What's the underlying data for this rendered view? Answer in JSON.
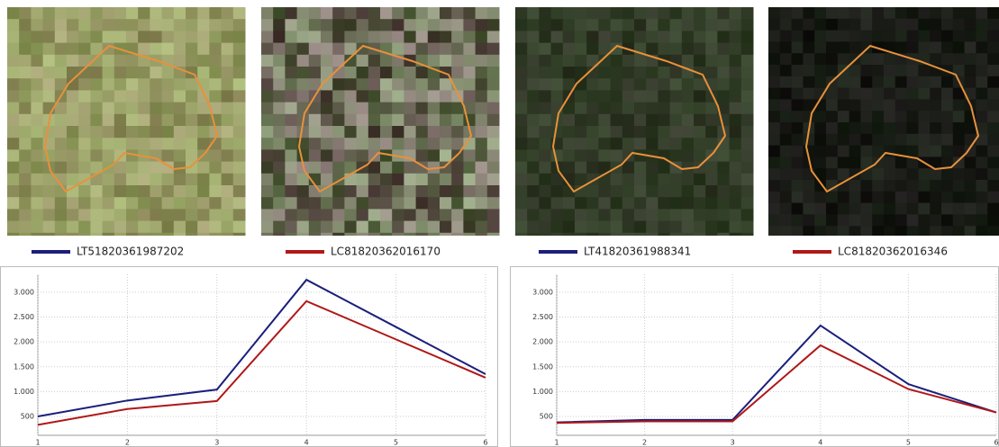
{
  "chart_data": [
    {
      "type": "line",
      "x": [
        1,
        2,
        3,
        4,
        5,
        6
      ],
      "series": [
        {
          "name": "LT51820361987202",
          "color": "#1b1f7a",
          "values": [
            500,
            820,
            1040,
            3250,
            2300,
            1350
          ]
        },
        {
          "name": "LC81820362016170",
          "color": "#b01818",
          "values": [
            330,
            650,
            810,
            2820,
            2050,
            1280
          ]
        }
      ],
      "xlim": [
        1,
        6
      ],
      "xticks": [
        1,
        2,
        3,
        4,
        5,
        6
      ],
      "ylim": [
        120,
        3360
      ],
      "yticks": [
        500,
        {
          "value": 1000,
          "label": "1.000"
        },
        {
          "value": 1500,
          "label": "1.500"
        },
        {
          "value": 2000,
          "label": "2.000"
        },
        {
          "value": 2500,
          "label": "2.500"
        },
        {
          "value": 3000,
          "label": "3.000"
        }
      ],
      "grid": true
    },
    {
      "type": "line",
      "x": [
        1,
        2,
        3,
        4,
        5,
        6
      ],
      "series": [
        {
          "name": "LT41820361988341",
          "color": "#1b1f7a",
          "values": [
            380,
            430,
            430,
            2330,
            1150,
            580
          ]
        },
        {
          "name": "LC81820362016346",
          "color": "#b01818",
          "values": [
            370,
            400,
            400,
            1930,
            1050,
            580
          ]
        }
      ],
      "xlim": [
        1,
        6
      ],
      "xticks": [
        1,
        2,
        3,
        4,
        5,
        6
      ],
      "ylim": [
        120,
        3360
      ],
      "yticks": [
        500,
        {
          "value": 1000,
          "label": "1.000"
        },
        {
          "value": 1500,
          "label": "1.500"
        },
        {
          "value": 2000,
          "label": "2.000"
        },
        {
          "value": 2500,
          "label": "2.500"
        },
        {
          "value": 3000,
          "label": "3.000"
        }
      ],
      "grid": true
    }
  ]
}
